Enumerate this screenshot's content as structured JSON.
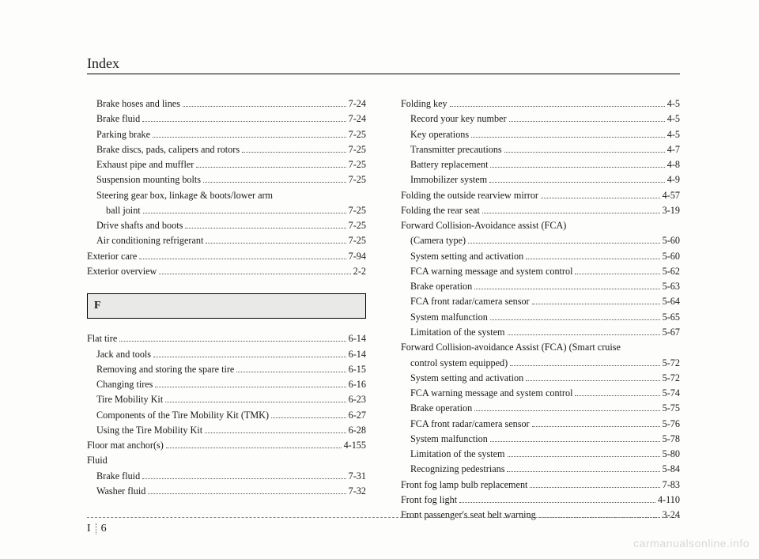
{
  "header": "Index",
  "section_letter": "F",
  "page_letter": "I",
  "page_number": "6",
  "watermark": "carmanualsonline.info",
  "left_before": [
    {
      "t": "Brake hoses and lines",
      "p": "7-24",
      "lvl": 1
    },
    {
      "t": "Brake fluid",
      "p": "7-24",
      "lvl": 1
    },
    {
      "t": "Parking brake",
      "p": "7-25",
      "lvl": 1
    },
    {
      "t": "Brake discs, pads, calipers and rotors",
      "p": "7-25",
      "lvl": 1
    },
    {
      "t": "Exhaust pipe and muffler",
      "p": "7-25",
      "lvl": 1
    },
    {
      "t": "Suspension mounting bolts",
      "p": "7-25",
      "lvl": 1
    },
    {
      "t": "Steering gear box, linkage & boots/lower arm",
      "p": "",
      "lvl": 1,
      "nodots": true
    },
    {
      "t": "ball joint",
      "p": "7-25",
      "lvl": 2
    },
    {
      "t": "Drive shafts and boots",
      "p": "7-25",
      "lvl": 1
    },
    {
      "t": "Air conditioning refrigerant",
      "p": "7-25",
      "lvl": 1
    },
    {
      "t": "Exterior care",
      "p": "7-94",
      "lvl": 0
    },
    {
      "t": "Exterior overview",
      "p": "2-2",
      "lvl": 0
    }
  ],
  "left_after": [
    {
      "t": "Flat tire",
      "p": "6-14",
      "lvl": 0
    },
    {
      "t": "Jack and tools",
      "p": "6-14",
      "lvl": 1
    },
    {
      "t": "Removing and storing the spare tire",
      "p": "6-15",
      "lvl": 1
    },
    {
      "t": "Changing tires",
      "p": "6-16",
      "lvl": 1
    },
    {
      "t": "Tire Mobility Kit",
      "p": "6-23",
      "lvl": 1
    },
    {
      "t": "Components of the Tire Mobility Kit (TMK)",
      "p": "6-27",
      "lvl": 1
    },
    {
      "t": "Using the Tire Mobility Kit",
      "p": "6-28",
      "lvl": 1
    },
    {
      "t": "Floor mat anchor(s)",
      "p": "4-155",
      "lvl": 0
    },
    {
      "t": "Fluid",
      "p": "",
      "lvl": 0,
      "nodots": true
    },
    {
      "t": "Brake fluid",
      "p": "7-31",
      "lvl": 1
    },
    {
      "t": "Washer fluid",
      "p": "7-32",
      "lvl": 1
    }
  ],
  "right": [
    {
      "t": "Folding key",
      "p": "4-5",
      "lvl": 0
    },
    {
      "t": "Record your key number",
      "p": "4-5",
      "lvl": 1
    },
    {
      "t": "Key operations",
      "p": "4-5",
      "lvl": 1
    },
    {
      "t": "Transmitter precautions",
      "p": "4-7",
      "lvl": 1
    },
    {
      "t": "Battery replacement",
      "p": "4-8",
      "lvl": 1
    },
    {
      "t": "Immobilizer system",
      "p": "4-9",
      "lvl": 1
    },
    {
      "t": "Folding the outside rearview mirror",
      "p": "4-57",
      "lvl": 0
    },
    {
      "t": "Folding the rear seat",
      "p": "3-19",
      "lvl": 0
    },
    {
      "t": "Forward Collision-Avoidance assist (FCA)",
      "p": "",
      "lvl": 0,
      "nodots": true
    },
    {
      "t": "(Camera type)",
      "p": "5-60",
      "lvl": 1
    },
    {
      "t": "System setting and activation",
      "p": "5-60",
      "lvl": 1
    },
    {
      "t": "FCA warning message and system control",
      "p": "5-62",
      "lvl": 1
    },
    {
      "t": "Brake operation",
      "p": "5-63",
      "lvl": 1
    },
    {
      "t": "FCA front radar/camera sensor",
      "p": "5-64",
      "lvl": 1
    },
    {
      "t": "System malfunction",
      "p": "5-65",
      "lvl": 1
    },
    {
      "t": "Limitation of the system",
      "p": "5-67",
      "lvl": 1
    },
    {
      "t": "Forward Collision-avoidance Assist (FCA) (Smart cruise",
      "p": "",
      "lvl": 0,
      "nodots": true
    },
    {
      "t": "control system equipped)",
      "p": "5-72",
      "lvl": 1
    },
    {
      "t": "System setting and activation",
      "p": "5-72",
      "lvl": 1
    },
    {
      "t": "FCA warning message and system control",
      "p": "5-74",
      "lvl": 1
    },
    {
      "t": "Brake operation",
      "p": "5-75",
      "lvl": 1
    },
    {
      "t": "FCA front radar/camera sensor",
      "p": "5-76",
      "lvl": 1
    },
    {
      "t": "System malfunction",
      "p": "5-78",
      "lvl": 1
    },
    {
      "t": "Limitation of the system",
      "p": "5-80",
      "lvl": 1
    },
    {
      "t": "Recognizing pedestrians",
      "p": "5-84",
      "lvl": 1
    },
    {
      "t": "Front fog lamp bulb replacement",
      "p": "7-83",
      "lvl": 0
    },
    {
      "t": "Front fog light",
      "p": "4-110",
      "lvl": 0
    },
    {
      "t": "Front passenger's seat belt warning",
      "p": "3-24",
      "lvl": 0
    }
  ]
}
